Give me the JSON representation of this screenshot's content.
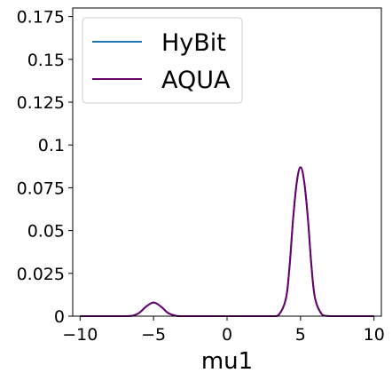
{
  "chart_data": {
    "type": "line",
    "xlabel": "mu1",
    "ylabel": "",
    "xlim": [
      -10.5,
      10.5
    ],
    "ylim": [
      0,
      0.18
    ],
    "x_ticks": [
      -10,
      -5,
      0,
      5,
      10
    ],
    "x_tick_labels": [
      "−10",
      "−5",
      "0",
      "5",
      "10"
    ],
    "y_ticks": [
      0,
      0.025,
      0.05,
      0.075,
      0.1,
      0.125,
      0.15,
      0.175
    ],
    "y_tick_labels": [
      "0",
      "0.025",
      "0.05",
      "0.075",
      "0.1",
      "0.125",
      "0.15",
      "0.175"
    ],
    "grid": false,
    "legend": "top-left",
    "x": [
      -10,
      -8,
      -7,
      -6.5,
      -6,
      -5.5,
      -5,
      -4.5,
      -4,
      -3.5,
      -3,
      0,
      3,
      3.5,
      4,
      4.25,
      4.5,
      4.75,
      5,
      5.25,
      5.5,
      5.75,
      6,
      6.5,
      7,
      8,
      10
    ],
    "series": [
      {
        "name": "HyBit",
        "color": "#1f77b4",
        "values": [
          0,
          0,
          0,
          0.0001,
          0.0018,
          0.0056,
          0.008,
          0.0056,
          0.0018,
          0.0003,
          0,
          0,
          0,
          0.0006,
          0.01,
          0.0287,
          0.0573,
          0.0785,
          0.087,
          0.0785,
          0.0573,
          0.0287,
          0.01,
          0.0006,
          0,
          0,
          0
        ]
      },
      {
        "name": "AQUA",
        "color": "#6a006a",
        "values": [
          0,
          0,
          0,
          0.0001,
          0.0018,
          0.0056,
          0.008,
          0.0056,
          0.0018,
          0.0003,
          0,
          0,
          0,
          0.0006,
          0.01,
          0.0287,
          0.0573,
          0.0785,
          0.087,
          0.0785,
          0.0573,
          0.0287,
          0.01,
          0.0006,
          0,
          0,
          0
        ]
      }
    ]
  }
}
